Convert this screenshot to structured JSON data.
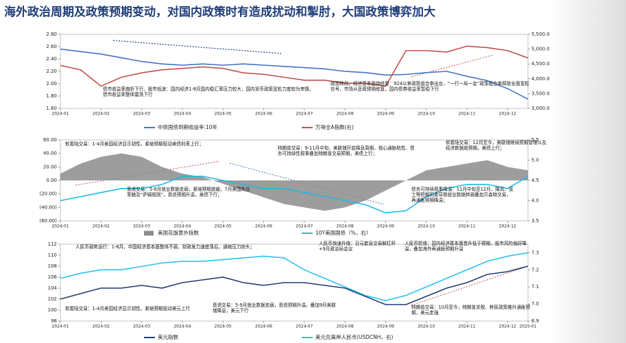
{
  "title": "海外政治周期及政策预期变动，对国内政策时有造成扰动和掣肘，大国政策博弈加大",
  "chart_data": [
    {
      "type": "line",
      "categories": [
        "2024-01",
        null,
        "2024-02",
        null,
        "2024-03",
        null,
        "2024-04",
        null,
        "2024-05",
        null,
        "2024-06",
        null,
        "2024-07",
        null,
        "2024-08",
        null,
        "2024-09",
        null,
        "2024-10",
        null,
        "2024-11",
        null,
        "2024-12",
        null
      ],
      "ylim": [
        1.6,
        2.8
      ],
      "yticks": [
        {
          "value": 1.6,
          "label": "1.60"
        },
        {
          "value": 1.8,
          "label": "1.80"
        },
        {
          "value": 2.0,
          "label": "2.00"
        },
        {
          "value": 2.2,
          "label": "2.20"
        },
        {
          "value": 2.4,
          "label": "2.40"
        },
        {
          "value": 2.6,
          "label": "2.60"
        },
        {
          "value": 2.8,
          "label": "2.80"
        }
      ],
      "y2lim": [
        3000,
        5500
      ],
      "y2ticks": [
        {
          "value": 3000,
          "label": "3,000.0"
        },
        {
          "value": 3500,
          "label": "3,500.0"
        },
        {
          "value": 4000,
          "label": "4,000.0"
        },
        {
          "value": 4500,
          "label": "4,500.0"
        },
        {
          "value": 5000,
          "label": "5,000.0"
        },
        {
          "value": 5500,
          "label": "5,500.0"
        }
      ],
      "series": [
        {
          "name": "中债国债到期收益率:10年",
          "type": "line",
          "color": "#4472c4",
          "values": [
            2.56,
            2.52,
            2.48,
            2.42,
            2.36,
            2.32,
            2.3,
            2.32,
            2.3,
            2.32,
            2.3,
            2.28,
            2.26,
            2.24,
            2.2,
            2.18,
            2.14,
            2.15,
            2.18,
            2.2,
            2.12,
            2.05,
            1.92,
            1.75
          ]
        },
        {
          "name": "万得全A指数(右)",
          "type": "line",
          "axis": "y2",
          "color": "#c0504d",
          "values": [
            4450,
            4300,
            3750,
            4050,
            4200,
            4300,
            4350,
            4400,
            4350,
            4200,
            4150,
            4050,
            3950,
            3950,
            3850,
            3850,
            3750,
            4950,
            4950,
            4900,
            5100,
            5050,
            4950,
            4700
          ]
        }
      ],
      "annotations": [
        "债市收益率曲折下行、股市低迷：国内经济1-8月国内稳汇率压力较大，国内货币政策宽松力度较为审慎，债市收益率整体震荡下行",
        "政策转向，经济基本面待修复：924以来政策组合拳出台，“一行一局一会”政策组合拳释放全面宽松信号，市场从悲观预期修复，国内债券收益率暂稳下行"
      ]
    },
    {
      "type": "line",
      "categories": [
        "2024-01",
        null,
        "2024-02",
        null,
        "2024-03",
        null,
        "2024-04",
        null,
        "2024-05",
        null,
        "2024-06",
        null,
        "2024-07",
        null,
        "2024-08",
        null,
        "2024-09",
        null,
        "2024-10",
        null,
        "2024-11",
        null,
        "2024-12",
        null
      ],
      "ylim": [
        -60,
        60
      ],
      "yticks": [
        {
          "value": -60,
          "label": "(60.00)"
        },
        {
          "value": -40,
          "label": "(40.00)"
        },
        {
          "value": -20,
          "label": "(20.00)"
        },
        {
          "value": 0,
          "label": "0.00"
        },
        {
          "value": 20,
          "label": "20.00"
        },
        {
          "value": 40,
          "label": "40.00"
        },
        {
          "value": 60,
          "label": "60.00"
        }
      ],
      "y2lim": [
        3.5,
        5.5
      ],
      "y2ticks": [
        {
          "value": 3.5,
          "label": "3.5"
        },
        {
          "value": 4.0,
          "label": "4.0"
        },
        {
          "value": 4.5,
          "label": "4.5"
        },
        {
          "value": 5.0,
          "label": "5.0"
        },
        {
          "value": 5.5,
          "label": "5.5"
        }
      ],
      "series": [
        {
          "name": "美国花旗意外指数",
          "type": "area",
          "color": "#8c8c8c",
          "values": [
            10,
            25,
            35,
            40,
            35,
            20,
            10,
            5,
            -5,
            -15,
            -25,
            -35,
            -40,
            -45,
            -40,
            -30,
            -15,
            0,
            15,
            20,
            25,
            30,
            20,
            15
          ]
        },
        {
          "name": "10Y美国国债（%，右）",
          "type": "line",
          "axis": "y2",
          "color": "#1fb7e6",
          "values": [
            4.0,
            4.1,
            4.2,
            4.3,
            4.3,
            4.4,
            4.6,
            4.6,
            4.5,
            4.4,
            4.3,
            4.3,
            4.2,
            4.1,
            4.0,
            3.9,
            3.7,
            3.75,
            4.1,
            4.3,
            4.4,
            4.4,
            4.3,
            4.6
          ]
        }
      ],
      "annotations": [
        "软着陆交易：1-4月美国经济显示韧性，紧缩预期驱动美债利率上行；",
        "特朗普交易：9-11月中旬，美联储开启降息周期，核心通胀粘性、债务可持续性叙事叠加特朗普交易预期，美债上行；",
        "软着陆交易：12月至今，美联储继续预期管理以及经济数据超预期，美债上行；",
        "衰退交易：5-8月就业数据走弱，紧缩预期放缓，7月美国失业率触及“萨姆规则”，衰退预期升温，美债下行；",
        "债务可持续叙事降温：11月中旬至12月，降风、宽工等短期因素导致就业数据转弱叠加贝森特交易，再通胀预期降温；"
      ]
    },
    {
      "type": "line",
      "categories": [
        "2024-01",
        null,
        "2024-02",
        null,
        "2024-03",
        null,
        "2024-04",
        null,
        "2024-05",
        null,
        "2024-06",
        null,
        "2024-07",
        null,
        "2024-08",
        null,
        "2024-09",
        null,
        "2024-10",
        null,
        "2024-11",
        null,
        "2024-12",
        "2025-01"
      ],
      "ylim": [
        98,
        112
      ],
      "yticks": [
        98,
        100,
        102,
        104,
        106,
        108,
        110,
        112
      ],
      "y2lim": [
        6.9,
        7.35
      ],
      "y2ticks": [
        6.9,
        {
          "value": 7.0,
          "label": "7.0"
        },
        7.1,
        7.2,
        7.3
      ],
      "series": [
        {
          "name": "美元指数",
          "type": "line",
          "color": "#1f3b73",
          "values": [
            102,
            103,
            104,
            104,
            104.5,
            104,
            105,
            105.5,
            106,
            105,
            104.5,
            105,
            105,
            104.5,
            104,
            102.5,
            101,
            101,
            102.5,
            104,
            105,
            106.5,
            107,
            108
          ]
        },
        {
          "name": "美元兑离岸人民币(USDCNH，右)",
          "type": "line",
          "axis": "y2",
          "color": "#2cc0ec",
          "values": [
            7.15,
            7.18,
            7.2,
            7.2,
            7.22,
            7.24,
            7.25,
            7.25,
            7.26,
            7.27,
            7.28,
            7.27,
            7.2,
            7.15,
            7.1,
            7.05,
            7.02,
            7.05,
            7.1,
            7.15,
            7.2,
            7.25,
            7.28,
            7.3
          ]
        }
      ],
      "annotations": [
        "人民币弱势运行：1-8月，中国经济基本面整体不弱，财政发力速度落后，通缩压力抬头；",
        "人民币快速升值：日元套息交易解扛杆+9月政治局会议",
        "人民币贬值：国内经济基本面首升低于预期，股市风险偏好降温，叠加海外再通胀预期升温",
        "软着陆交易：1-4月美国经济显示韧性，紧缩预期驱动美元上行",
        "衰退交易：5-9月就业数据走弱，衰退预期升温，叠加9月美联储降息，美元下行",
        "特朗普交易：10月至今，特朗普关税、移民政策推升通胀预期，美元走强"
      ]
    }
  ]
}
